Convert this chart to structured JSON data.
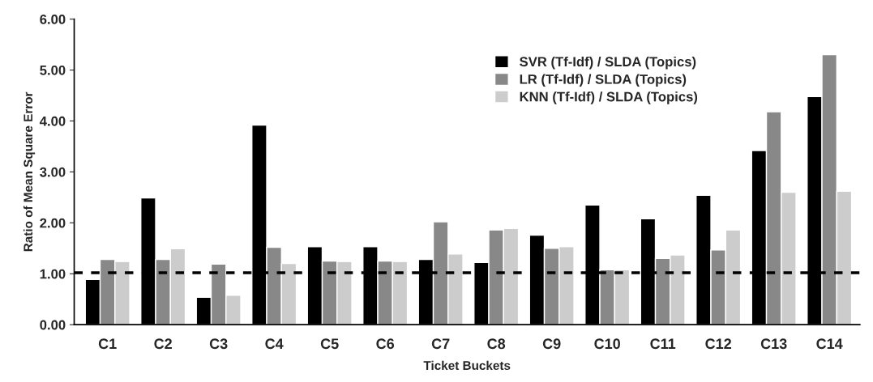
{
  "chart_data": {
    "type": "bar",
    "xlabel": "Ticket Buckets",
    "ylabel": "Ratio of Mean Square Error",
    "categories": [
      "C1",
      "C2",
      "C3",
      "C4",
      "C5",
      "C6",
      "C7",
      "C8",
      "C9",
      "C10",
      "C11",
      "C12",
      "C13",
      "C14"
    ],
    "series": [
      {
        "name": "SVR (Tf-Idf) / SLDA (Topics)",
        "color": "#000000",
        "values": [
          0.89,
          2.49,
          0.54,
          3.92,
          1.53,
          1.53,
          1.28,
          1.22,
          1.76,
          2.35,
          2.08,
          2.54,
          3.42,
          4.48
        ]
      },
      {
        "name": "LR (Tf-Idf) / SLDA (Topics)",
        "color": "#888888",
        "values": [
          1.28,
          1.28,
          1.19,
          1.52,
          1.25,
          1.25,
          2.02,
          1.86,
          1.5,
          1.08,
          1.3,
          1.47,
          4.18,
          5.3
        ]
      },
      {
        "name": "KNN (Tf-Idf) / SLDA (Topics)",
        "color": "#cccccc",
        "values": [
          1.24,
          1.49,
          0.58,
          1.2,
          1.24,
          1.24,
          1.39,
          1.89,
          1.53,
          1.08,
          1.37,
          1.86,
          2.6,
          2.62
        ]
      }
    ],
    "ylim": [
      0,
      6
    ],
    "yticks": [
      {
        "value": 0,
        "label": "0.00"
      },
      {
        "value": 1,
        "label": "1.00"
      },
      {
        "value": 2,
        "label": "2.00"
      },
      {
        "value": 3,
        "label": "3.00"
      },
      {
        "value": 4,
        "label": "4.00"
      },
      {
        "value": 5,
        "label": "5.00"
      },
      {
        "value": 6,
        "label": "6.00"
      }
    ],
    "ref_lines": [
      {
        "axis": "y",
        "value": 1.02,
        "color": "#000000",
        "line_style": "dashed"
      }
    ],
    "legend": "top",
    "grid": false
  }
}
